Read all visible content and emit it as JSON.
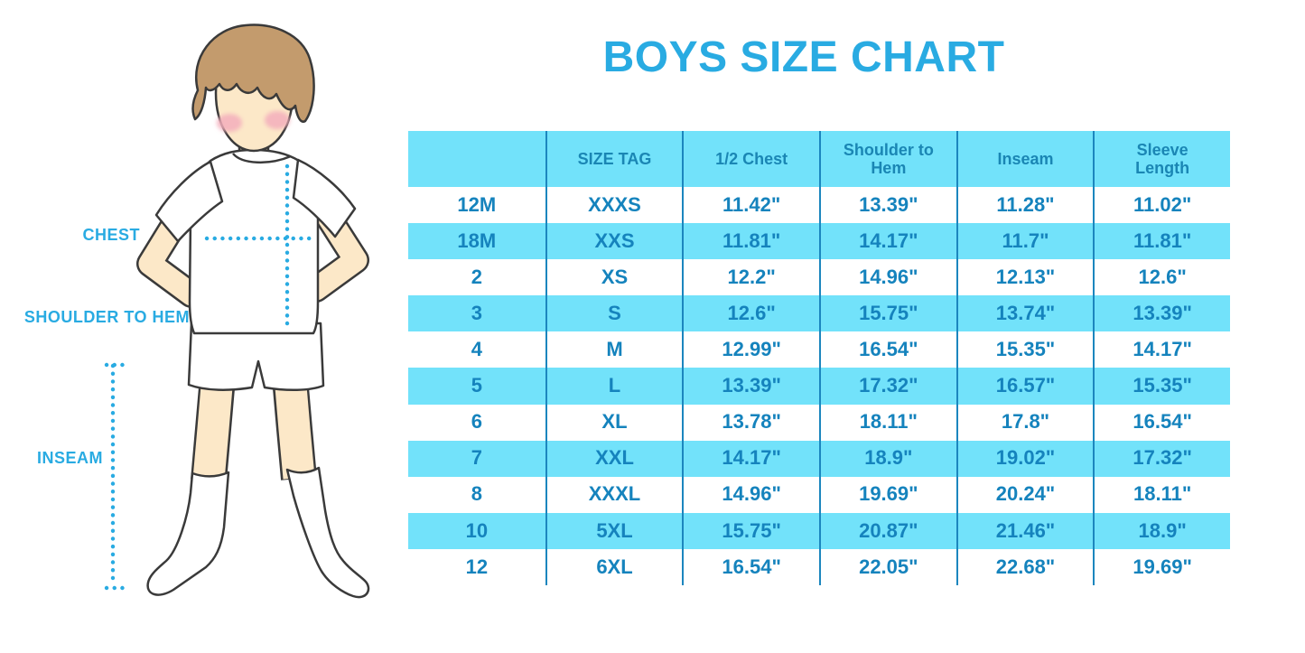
{
  "page": {
    "title": "BOYS SIZE CHART"
  },
  "diagram_labels": {
    "chest": "CHEST",
    "shoulder_to_hem": "SHOULDER TO HEM",
    "inseam": "INSEAM"
  },
  "colors": {
    "accent_blue": "#29abe2",
    "table_band_cyan": "#72e2fa",
    "table_divider_blue": "#1c86be",
    "table_text_blue": "#1583bd",
    "skin": "#fce8c8",
    "hair": "#c39b6d",
    "blush": "#f3aebc",
    "line_art": "#3a3a3a"
  },
  "chart_data": {
    "type": "table",
    "title": "BOYS SIZE CHART",
    "columns": [
      "",
      "SIZE TAG",
      "1/2 Chest",
      "Shoulder to Hem",
      "Inseam",
      "Sleeve Length"
    ],
    "rows": [
      [
        "12M",
        "XXXS",
        "11.42\"",
        "13.39\"",
        "11.28\"",
        "11.02\""
      ],
      [
        "18M",
        "XXS",
        "11.81\"",
        "14.17\"",
        "11.7\"",
        "11.81\""
      ],
      [
        "2",
        "XS",
        "12.2\"",
        "14.96\"",
        "12.13\"",
        "12.6\""
      ],
      [
        "3",
        "S",
        "12.6\"",
        "15.75\"",
        "13.74\"",
        "13.39\""
      ],
      [
        "4",
        "M",
        "12.99\"",
        "16.54\"",
        "15.35\"",
        "14.17\""
      ],
      [
        "5",
        "L",
        "13.39\"",
        "17.32\"",
        "16.57\"",
        "15.35\""
      ],
      [
        "6",
        "XL",
        "13.78\"",
        "18.11\"",
        "17.8\"",
        "16.54\""
      ],
      [
        "7",
        "XXL",
        "14.17\"",
        "18.9\"",
        "19.02\"",
        "17.32\""
      ],
      [
        "8",
        "XXXL",
        "14.96\"",
        "19.69\"",
        "20.24\"",
        "18.11\""
      ],
      [
        "10",
        "5XL",
        "15.75\"",
        "20.87\"",
        "21.46\"",
        "18.9\""
      ],
      [
        "12",
        "6XL",
        "16.54\"",
        "22.05\"",
        "22.68\"",
        "19.69\""
      ]
    ],
    "header_band": "cyan",
    "row_striping": [
      "white",
      "cyan"
    ],
    "legend_position": "none",
    "grid": "vertical dividers only"
  }
}
